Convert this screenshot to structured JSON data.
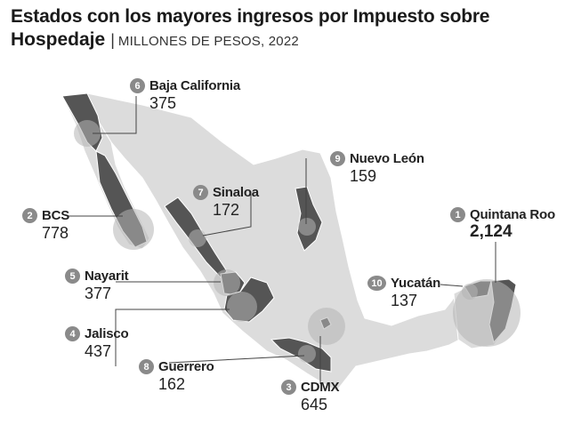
{
  "title": {
    "main_line1": "Estados con los mayores ingresos por Impuesto sobre",
    "main_line2": "Hospedaje",
    "separator": "|",
    "subtitle": "MILLONES DE PESOS, 2022"
  },
  "colors": {
    "land": "#dcdcdc",
    "highlight": "#555555",
    "circle": "#b4b4b4",
    "badge": "#8a8a8a",
    "leader": "#444444",
    "border": "#ffffff"
  },
  "states": [
    {
      "rank": "1",
      "name": "Quintana Roo",
      "value": "2,124"
    },
    {
      "rank": "2",
      "name": "BCS",
      "value": "778"
    },
    {
      "rank": "3",
      "name": "CDMX",
      "value": "645"
    },
    {
      "rank": "4",
      "name": "Jalisco",
      "value": "437"
    },
    {
      "rank": "5",
      "name": "Nayarit",
      "value": "377"
    },
    {
      "rank": "6",
      "name": "Baja California",
      "value": "375"
    },
    {
      "rank": "7",
      "name": "Sinaloa",
      "value": "172"
    },
    {
      "rank": "8",
      "name": "Guerrero",
      "value": "162"
    },
    {
      "rank": "9",
      "name": "Nuevo León",
      "value": "159"
    },
    {
      "rank": "10",
      "name": "Yucatán",
      "value": "137"
    }
  ]
}
